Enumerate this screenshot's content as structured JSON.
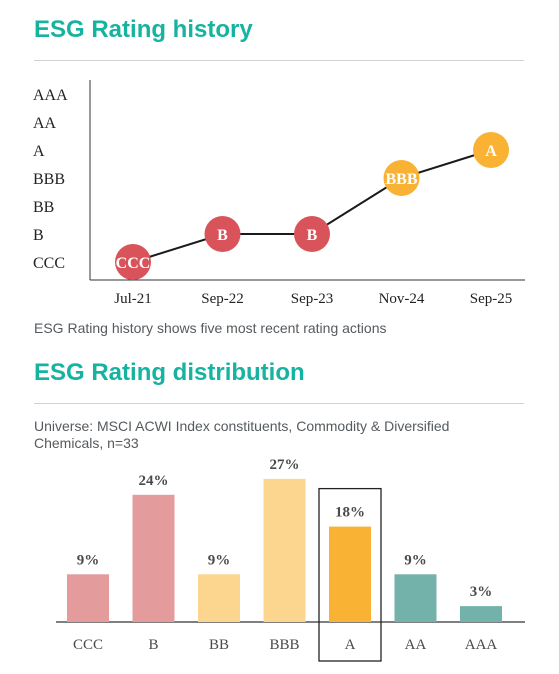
{
  "history": {
    "title": "ESG Rating history",
    "caption": "ESG Rating history shows five most recent rating actions"
  },
  "distribution": {
    "title": "ESG Rating distribution",
    "subtitle": "Universe: MSCI ACWI Index constituents, Commodity & Diversified Chemicals, n=33"
  },
  "colors": {
    "teal_title": "#17b3a1",
    "ccc_b": "#d9545a",
    "bb_bbb_a": "#f9b233",
    "aa_aaa": "#5aa59d"
  },
  "chart_data": [
    {
      "type": "line",
      "y_levels": [
        "CCC",
        "B",
        "BB",
        "BBB",
        "A",
        "AA",
        "AAA"
      ],
      "x": [
        "Jul-21",
        "Sep-22",
        "Sep-23",
        "Nov-24",
        "Sep-25"
      ],
      "ratings": [
        "CCC",
        "B",
        "B",
        "BBB",
        "A"
      ],
      "point_colors": [
        "#d9545a",
        "#d9545a",
        "#d9545a",
        "#f9b233",
        "#f9b233"
      ],
      "grid": false
    },
    {
      "type": "bar",
      "categories": [
        "CCC",
        "B",
        "BB",
        "BBB",
        "A",
        "AA",
        "AAA"
      ],
      "values": [
        9,
        24,
        9,
        27,
        18,
        9,
        3
      ],
      "value_labels": [
        "9%",
        "24%",
        "9%",
        "27%",
        "18%",
        "9%",
        "3%"
      ],
      "bar_colors": [
        "#e39b9c",
        "#e39b9c",
        "#fcd68f",
        "#fcd68f",
        "#f9b233",
        "#73b2ab",
        "#73b2ab"
      ],
      "highlighted": "A",
      "grid": false
    }
  ]
}
